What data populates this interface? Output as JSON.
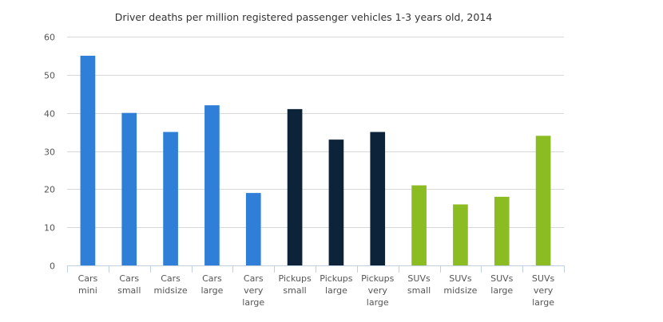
{
  "chart_data": {
    "type": "bar",
    "title": "Driver deaths per million registered passenger vehicles 1-3 years old, 2014",
    "xlabel": "",
    "ylabel": "",
    "ylim": [
      0,
      60
    ],
    "yticks": [
      0,
      10,
      20,
      30,
      40,
      50,
      60
    ],
    "grid": true,
    "legend": "none",
    "categories": [
      [
        "Cars",
        "mini"
      ],
      [
        "Cars",
        "small"
      ],
      [
        "Cars",
        "midsize"
      ],
      [
        "Cars",
        "large"
      ],
      [
        "Cars",
        "very",
        "large"
      ],
      [
        "Pickups",
        "small"
      ],
      [
        "Pickups",
        "large"
      ],
      [
        "Pickups",
        "very",
        "large"
      ],
      [
        "SUVs",
        "small"
      ],
      [
        "SUVs",
        "midsize"
      ],
      [
        "SUVs",
        "large"
      ],
      [
        "SUVs",
        "very",
        "large"
      ]
    ],
    "values": [
      55,
      40,
      35,
      42,
      19,
      41,
      33,
      35,
      21,
      16,
      18,
      34
    ],
    "groups": [
      "cars",
      "cars",
      "cars",
      "cars",
      "cars",
      "pickups",
      "pickups",
      "pickups",
      "suvs",
      "suvs",
      "suvs",
      "suvs"
    ],
    "colors": {
      "cars": "#2f7ed8",
      "pickups": "#0d233a",
      "suvs": "#8bbc21"
    }
  }
}
